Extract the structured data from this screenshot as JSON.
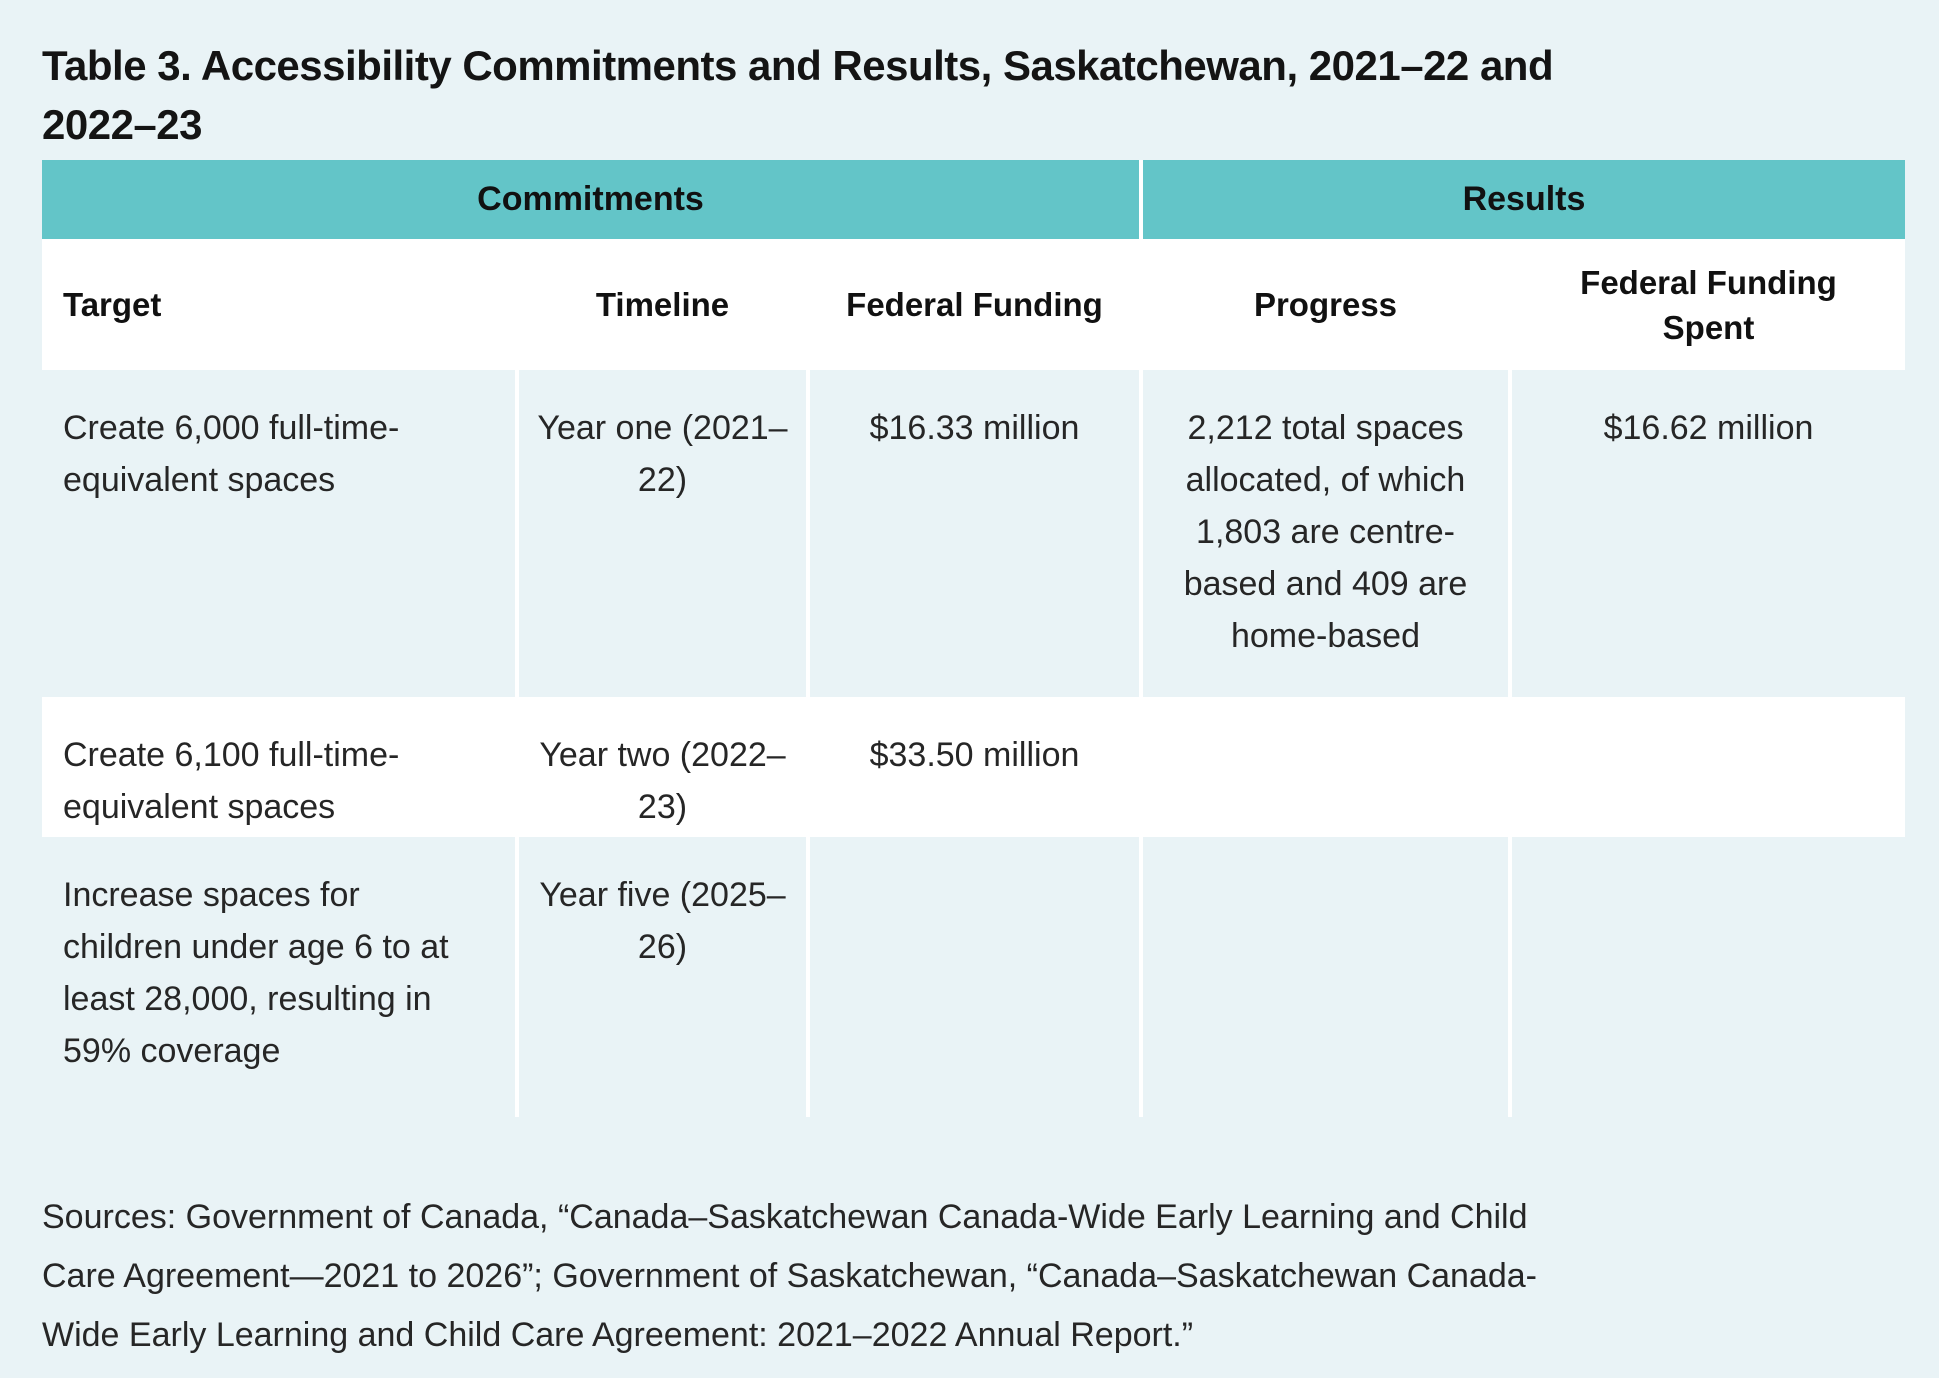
{
  "title": "Table 3. Accessibility Commitments and Results, Saskatchewan, 2021–22 and 2022–23",
  "table": {
    "group_headers": [
      {
        "label": "Commitments",
        "columns_spanned": 3
      },
      {
        "label": "Results",
        "columns_spanned": 2
      }
    ],
    "columns": [
      "Target",
      "Timeline",
      "Federal Funding",
      "Progress",
      "Federal Funding Spent"
    ],
    "rows": [
      [
        "Create 6,000 full-time-equivalent spaces",
        "Year one (2021–22)",
        "$16.33 million",
        "2,212 total spaces allocated, of which 1,803 are centre-based and 409 are home-based",
        "$16.62 million"
      ],
      [
        "Create 6,100 full-time-equivalent spaces",
        "Year two (2022–23)",
        "$33.50 million",
        "",
        ""
      ],
      [
        "Increase spaces for children under age 6 to at least 28,000, resulting in 59% coverage",
        "Year five (2025–26)",
        "",
        "",
        ""
      ]
    ]
  },
  "sources": "Sources: Government of Canada, “Canada–Saskatchewan Canada-Wide Early Learning and Child Care Agreement—2021 to 2026”; Government of Saskatchewan, “Canada–Saskatchewan Canada-Wide Early Learning and Child Care Agreement: 2021–2022 Annual Report.”",
  "colors": {
    "page_background": "#e9f3f6",
    "header_teal": "#63c5c8",
    "alt_row_background": "#e9f3f6",
    "white_row_background": "#ffffff",
    "divider": "#ffffff",
    "text": "#262626"
  }
}
